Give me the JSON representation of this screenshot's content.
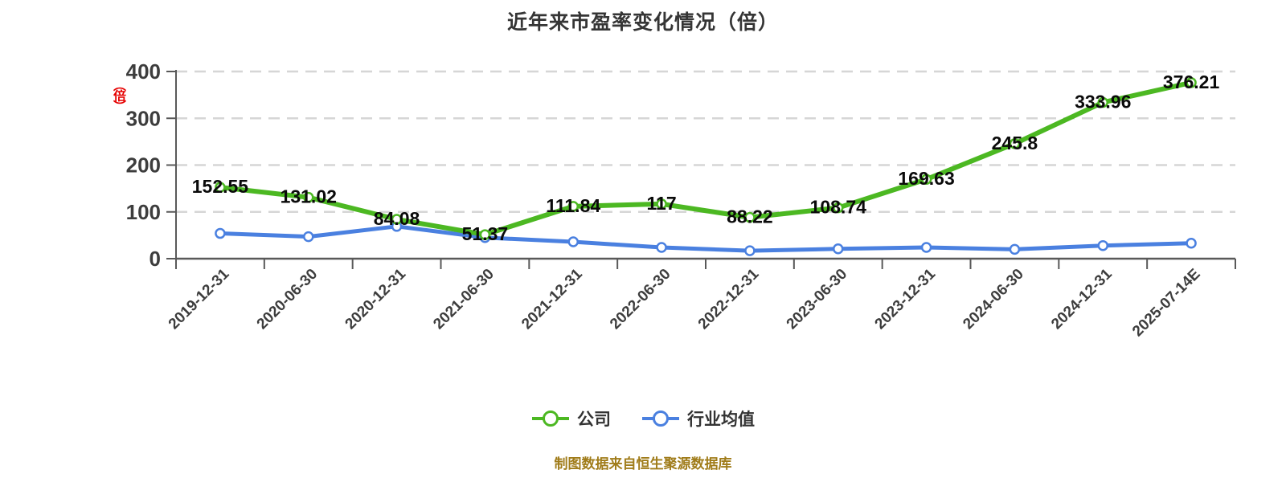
{
  "title": "近年来市盈率变化情况（倍）",
  "y_axis_unit_red_label": "（倍）",
  "caption": "制图数据来自恒生聚源数据库",
  "legend": {
    "items": [
      {
        "label": "公司"
      },
      {
        "label": "行业均值"
      }
    ]
  },
  "chart_data": {
    "type": "line",
    "title": "近年来市盈率变化情况（倍）",
    "categories": [
      "2019-12-31",
      "2020-06-30",
      "2020-12-31",
      "2021-06-30",
      "2021-12-31",
      "2022-06-30",
      "2022-12-31",
      "2023-06-30",
      "2023-12-31",
      "2024-06-30",
      "2024-12-31",
      "2025-07-14E"
    ],
    "series": [
      {
        "name": "公司",
        "color": "#4cb822",
        "values": [
          152.55,
          131.02,
          84.08,
          51.37,
          111.84,
          117,
          88.22,
          108.74,
          169.63,
          245.8,
          333.96,
          376.21
        ],
        "point_labels": [
          "152.55",
          "131.02",
          "84.08",
          "51.37",
          "111.84",
          "117",
          "88.22",
          "108.74",
          "169.63",
          "245.8",
          "333.96",
          "376.21"
        ],
        "labeled": true
      },
      {
        "name": "行业均值",
        "color": "#4a80e0",
        "values": [
          54,
          47,
          69,
          45,
          36,
          24,
          17,
          21,
          24,
          20,
          28,
          33
        ],
        "labeled": false
      }
    ],
    "xlabel": "",
    "ylabel": "（倍）",
    "ylim": [
      0,
      400
    ],
    "y_ticks": [
      0,
      100,
      200,
      300,
      400
    ],
    "grid": "horizontal-dashed",
    "legend_position": "bottom",
    "colors": {
      "axis": "#595959",
      "gridline": "#d6d6d6",
      "tick_label": "#3d3d3d",
      "data_label": "#0a0a0a",
      "caption": "#a07c1a",
      "y_unit_label": "#e60000",
      "marker_fill": "#ffffff"
    }
  }
}
